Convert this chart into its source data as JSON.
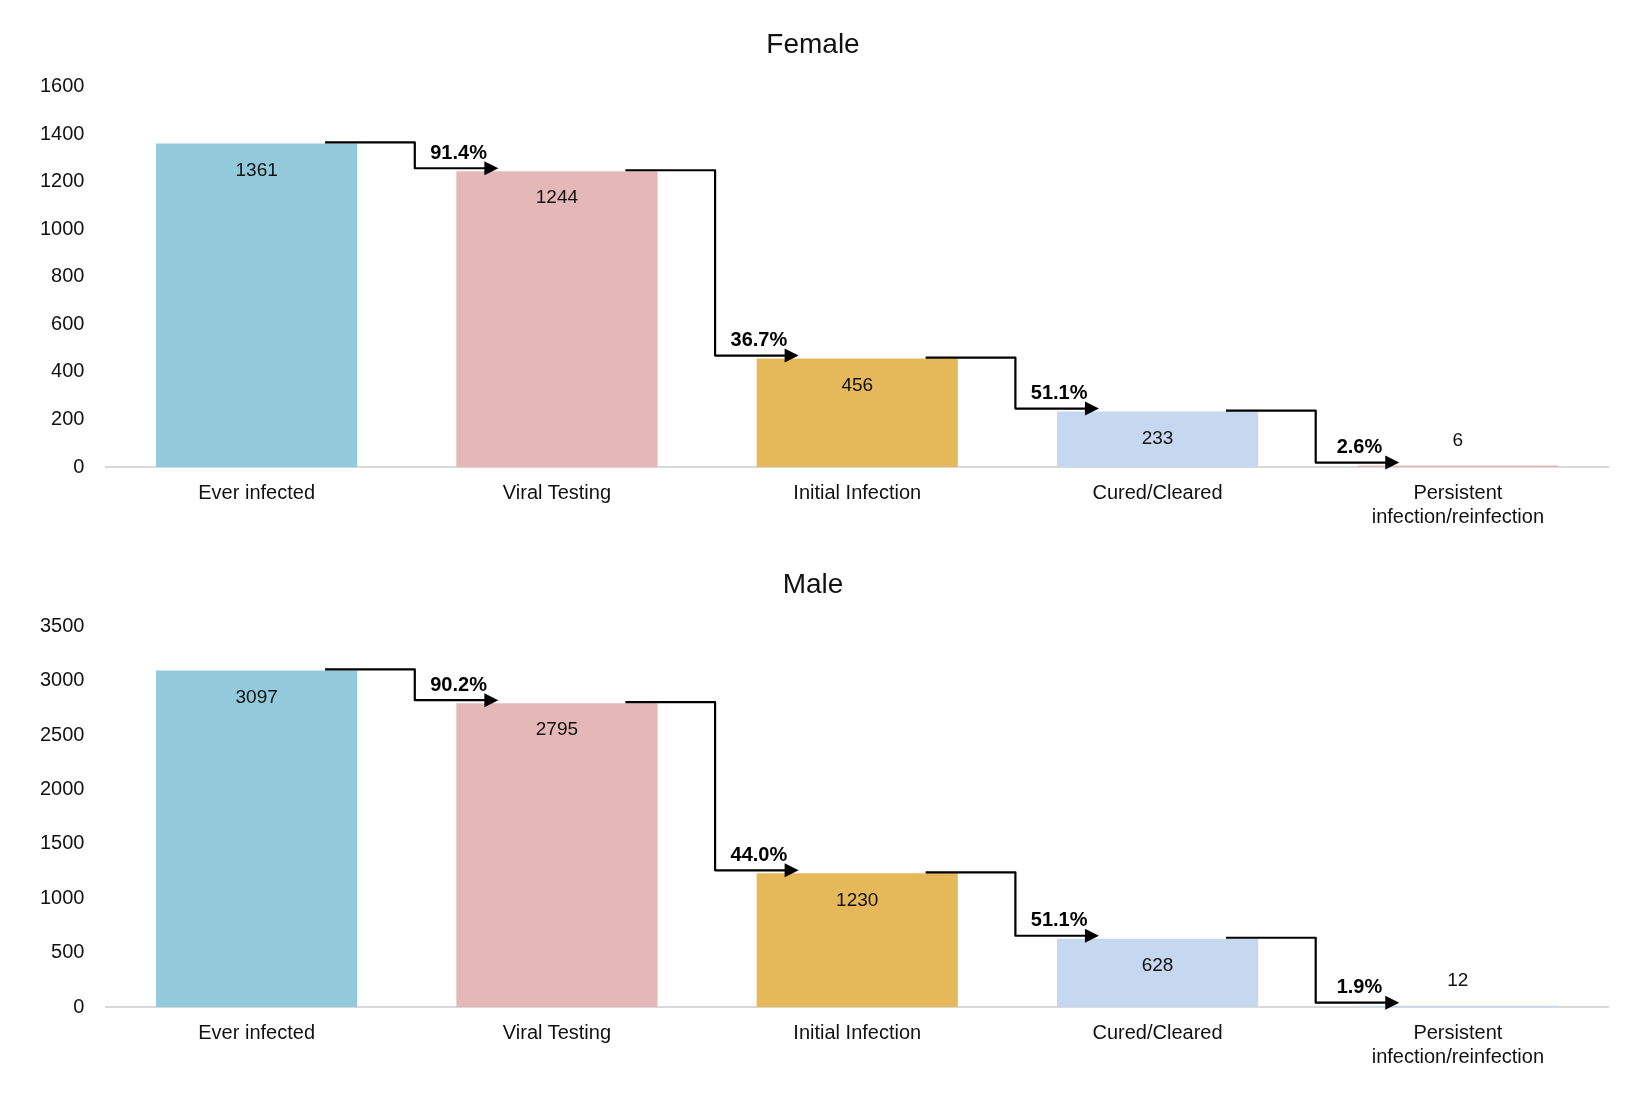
{
  "chart_data": [
    {
      "type": "bar",
      "title": "Female",
      "categories": [
        "Ever infected",
        "Viral Testing",
        "Initial Infection",
        "Cured/Cleared",
        "Persistent infection/reinfection"
      ],
      "values": [
        1361,
        1244,
        456,
        233,
        6
      ],
      "colors": [
        "#92cadb",
        "#e5b8b8",
        "#e5b95a",
        "#c5d8f0",
        "#e5b8b8"
      ],
      "ylim": [
        0,
        1600
      ],
      "yticks": [
        0,
        200,
        400,
        600,
        800,
        1000,
        1200,
        1400,
        1600
      ],
      "grid": false,
      "legend": false,
      "data_labels": true,
      "annotations": [
        "91.4%",
        "36.7%",
        "51.1%",
        "2.6%"
      ]
    },
    {
      "type": "bar",
      "title": "Male",
      "categories": [
        "Ever infected",
        "Viral Testing",
        "Initial Infection",
        "Cured/Cleared",
        "Persistent infection/reinfection"
      ],
      "values": [
        3097,
        2795,
        1230,
        628,
        12
      ],
      "colors": [
        "#92cadb",
        "#e5b8b8",
        "#e5b95a",
        "#c5d8f0",
        "#c5d8f0"
      ],
      "ylim": [
        0,
        3500
      ],
      "yticks": [
        0,
        500,
        1000,
        1500,
        2000,
        2500,
        3000,
        3500
      ],
      "grid": false,
      "legend": false,
      "data_labels": true,
      "annotations": [
        "90.2%",
        "44.0%",
        "51.1%",
        "1.9%"
      ]
    }
  ]
}
